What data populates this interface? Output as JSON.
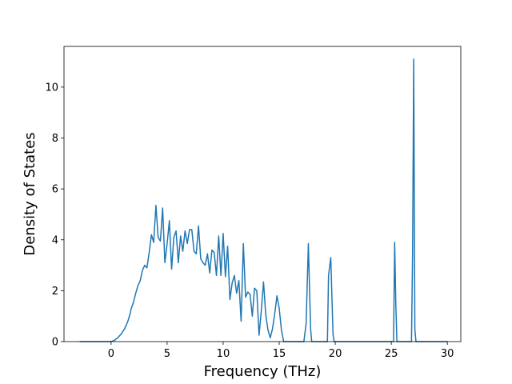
{
  "chart_data": {
    "type": "line",
    "xlabel": "Frequency (THz)",
    "ylabel": "Density of States",
    "xlim": [
      -4.2,
      31.2
    ],
    "ylim": [
      0,
      11.6
    ],
    "xticks": [
      0,
      5,
      10,
      15,
      20,
      25,
      30
    ],
    "yticks": [
      0,
      2,
      4,
      6,
      8,
      10
    ],
    "grid": false,
    "series_color": "#1f77b4",
    "series": [
      {
        "x": [
          -2.8,
          -2.0,
          -1.0,
          0.0,
          0.3,
          0.6,
          0.9,
          1.2,
          1.5,
          1.7,
          1.8,
          2.0,
          2.2,
          2.4,
          2.6,
          2.8,
          3.0,
          3.2,
          3.4,
          3.6,
          3.8,
          4.0,
          4.2,
          4.4,
          4.6,
          4.8,
          5.0,
          5.2,
          5.4,
          5.6,
          5.8,
          6.0,
          6.2,
          6.4,
          6.6,
          6.8,
          7.0,
          7.2,
          7.4,
          7.6,
          7.8,
          8.0,
          8.2,
          8.4,
          8.6,
          8.8,
          9.0,
          9.2,
          9.4,
          9.6,
          9.8,
          10.0,
          10.2,
          10.4,
          10.6,
          10.8,
          11.0,
          11.2,
          11.4,
          11.6,
          11.8,
          12.0,
          12.2,
          12.4,
          12.6,
          12.8,
          13.0,
          13.2,
          13.4,
          13.6,
          13.8,
          14.0,
          14.2,
          14.4,
          14.6,
          14.8,
          15.0,
          15.2,
          15.4,
          17.2,
          17.4,
          17.6,
          17.8,
          17.9,
          19.3,
          19.4,
          19.6,
          19.8,
          19.9,
          25.2,
          25.3,
          25.4,
          25.5,
          25.6,
          26.8,
          26.9,
          27.0,
          27.1,
          27.2,
          30.0
        ],
        "y": [
          0,
          0,
          0,
          0,
          0.05,
          0.15,
          0.3,
          0.5,
          0.8,
          1.1,
          1.3,
          1.55,
          1.9,
          2.2,
          2.4,
          2.8,
          3.0,
          2.9,
          3.5,
          4.2,
          3.9,
          5.35,
          4.1,
          3.95,
          5.25,
          3.1,
          3.85,
          4.75,
          2.85,
          4.1,
          4.35,
          3.1,
          4.15,
          3.55,
          4.35,
          3.85,
          4.4,
          4.4,
          3.55,
          3.45,
          4.55,
          3.25,
          3.1,
          3.0,
          3.45,
          2.7,
          3.6,
          3.5,
          2.6,
          4.15,
          2.6,
          4.25,
          2.55,
          3.75,
          1.65,
          2.3,
          2.6,
          1.9,
          2.4,
          0.8,
          3.85,
          1.75,
          1.95,
          1.85,
          1.0,
          2.1,
          2.0,
          0.25,
          1.2,
          2.35,
          1.05,
          0.45,
          0.15,
          0.5,
          1.1,
          1.8,
          1.3,
          0.45,
          0,
          0,
          0.7,
          3.85,
          0.5,
          0,
          0,
          2.6,
          3.3,
          0.3,
          0,
          0,
          3.9,
          1.5,
          0,
          0,
          0,
          3.5,
          11.1,
          0.5,
          0,
          0
        ]
      }
    ]
  }
}
